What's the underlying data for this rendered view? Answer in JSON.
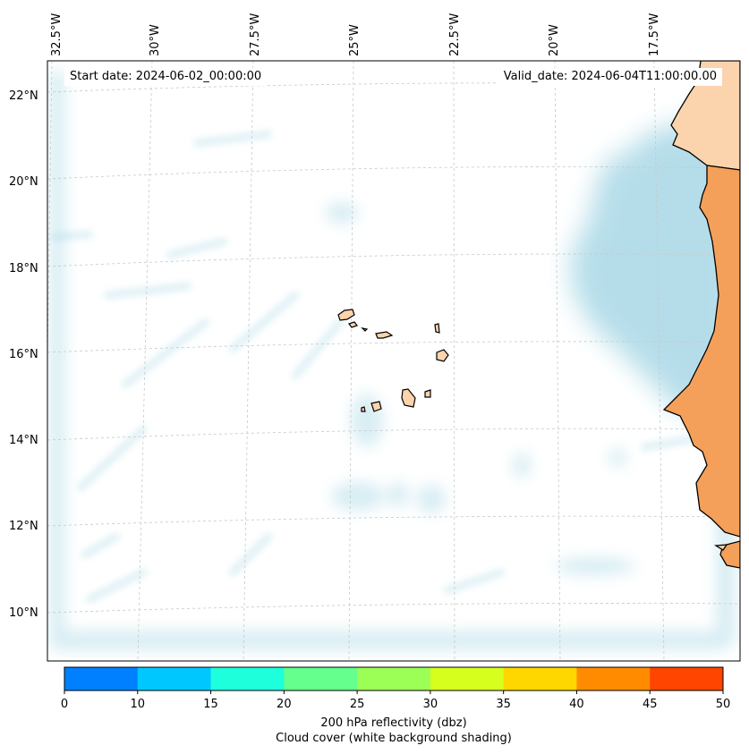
{
  "map": {
    "start_date": "Start date: 2024-06-02_00:00:00",
    "valid_date": "Valid_date: 2024-06-04T11:00:00.00",
    "lon_labels": [
      "32.5°W",
      "30°W",
      "27.5°W",
      "25°W",
      "22.5°W",
      "20°W",
      "17.5°W"
    ],
    "lat_labels": [
      "22°N",
      "20°N",
      "18°N",
      "16°N",
      "14°N",
      "12°N",
      "10°N"
    ],
    "colors": {
      "land": "#f5a05a",
      "land_light": "#fbd3ad",
      "cloud": "#a9d8e6",
      "gridline": "#c8c8c8"
    }
  },
  "colorbar": {
    "ticks": [
      "0",
      "10",
      "15",
      "20",
      "25",
      "30",
      "35",
      "40",
      "45",
      "50"
    ],
    "colors": [
      "#0080ff",
      "#00c8ff",
      "#1effdc",
      "#64ff8c",
      "#9bff55",
      "#d7ff1e",
      "#ffd700",
      "#ff8c00",
      "#ff4500"
    ],
    "label": "200 hPa reflectivity (dbz)",
    "sublabel": "Cloud cover (white background shading)"
  }
}
